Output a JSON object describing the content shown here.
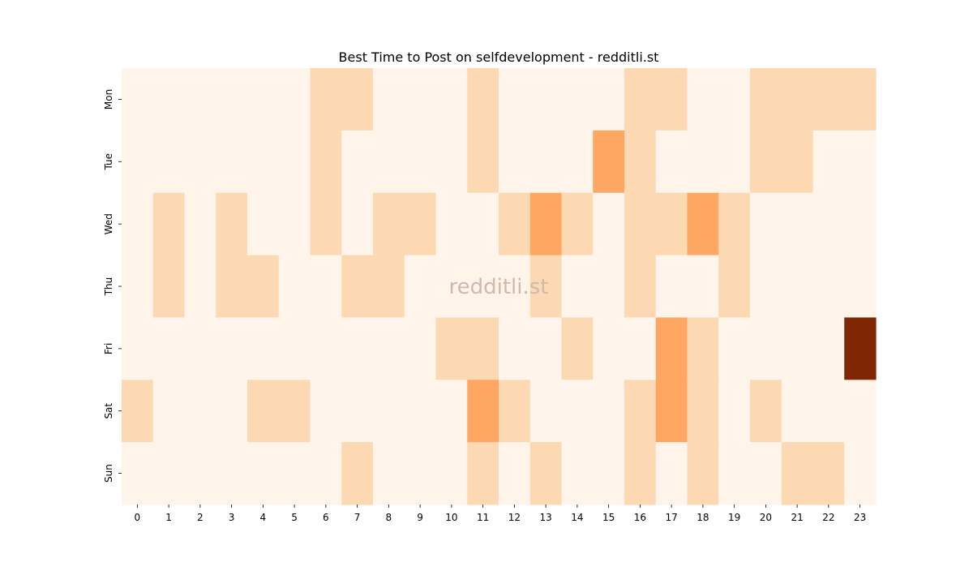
{
  "chart_data": {
    "type": "heatmap",
    "title": "Best Time to Post on selfdevelopment - redditli.st",
    "watermark": "redditli.st",
    "xlabel": "",
    "ylabel": "",
    "x_categories": [
      "0",
      "1",
      "2",
      "3",
      "4",
      "5",
      "6",
      "7",
      "8",
      "9",
      "10",
      "11",
      "12",
      "13",
      "14",
      "15",
      "16",
      "17",
      "18",
      "19",
      "20",
      "21",
      "22",
      "23"
    ],
    "y_categories": [
      "Mon",
      "Tue",
      "Wed",
      "Thu",
      "Fri",
      "Sat",
      "Sun"
    ],
    "value_range": [
      0,
      4
    ],
    "values": [
      [
        0,
        0,
        0,
        0,
        0,
        0,
        1,
        1,
        0,
        0,
        0,
        1,
        0,
        0,
        0,
        0,
        1,
        1,
        0,
        0,
        1,
        1,
        1,
        1
      ],
      [
        0,
        0,
        0,
        0,
        0,
        0,
        1,
        0,
        0,
        0,
        0,
        1,
        0,
        0,
        0,
        2,
        1,
        0,
        0,
        0,
        1,
        1,
        0,
        0
      ],
      [
        0,
        1,
        0,
        1,
        0,
        0,
        1,
        0,
        1,
        1,
        0,
        0,
        1,
        2,
        1,
        0,
        1,
        1,
        2,
        1,
        0,
        0,
        0,
        0
      ],
      [
        0,
        1,
        0,
        1,
        1,
        0,
        0,
        1,
        1,
        0,
        0,
        0,
        0,
        1,
        0,
        0,
        1,
        0,
        0,
        1,
        0,
        0,
        0,
        0
      ],
      [
        0,
        0,
        0,
        0,
        0,
        0,
        0,
        0,
        0,
        0,
        1,
        1,
        0,
        0,
        1,
        0,
        0,
        2,
        1,
        0,
        0,
        0,
        0,
        4
      ],
      [
        1,
        0,
        0,
        0,
        1,
        1,
        0,
        0,
        0,
        0,
        0,
        2,
        1,
        0,
        0,
        0,
        1,
        2,
        1,
        0,
        1,
        0,
        0,
        0
      ],
      [
        0,
        0,
        0,
        0,
        0,
        0,
        0,
        1,
        0,
        0,
        0,
        1,
        0,
        1,
        0,
        0,
        1,
        0,
        1,
        0,
        0,
        1,
        1,
        0
      ]
    ],
    "colors": [
      "#fff4e9",
      "#fdd9b3",
      "#fda762",
      "#e5590a",
      "#7f2704"
    ],
    "grid": false,
    "legend": "none"
  }
}
